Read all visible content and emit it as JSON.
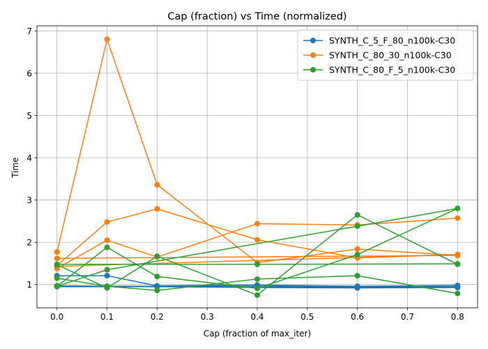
{
  "chart_data": {
    "type": "line",
    "title": "Cap (fraction) vs Time (normalized)",
    "xlabel": "Cap (fraction of max_iter)",
    "ylabel": "Time",
    "xlim": [
      -0.04,
      0.84
    ],
    "ylim": [
      0.45,
      7.12
    ],
    "xticks": [
      0.0,
      0.1,
      0.2,
      0.3,
      0.4,
      0.5,
      0.6,
      0.7,
      0.8
    ],
    "xtick_labels": [
      "0.0",
      "0.1",
      "0.2",
      "0.3",
      "0.4",
      "0.5",
      "0.6",
      "0.7",
      "0.8"
    ],
    "yticks": [
      1,
      2,
      3,
      4,
      5,
      6,
      7
    ],
    "ytick_labels": [
      "1",
      "2",
      "3",
      "4",
      "5",
      "6",
      "7"
    ],
    "grid": true,
    "legend_position": "top-right",
    "legend": [
      {
        "label": "SYNTH_C_5_F_80_n100k-C30",
        "color": "#1f77b4"
      },
      {
        "label": "SYNTH_C_80_30_n100k-C30",
        "color": "#ff7f0e"
      },
      {
        "label": "SYNTH_C_80_F_5_n100k-C30",
        "color": "#2ca02c"
      }
    ],
    "series": [
      {
        "group": 0,
        "color": "#1f77b4",
        "x": [
          0.0,
          0.1,
          0.2,
          0.4,
          0.6,
          0.8
        ],
        "y": [
          1.21,
          1.21,
          0.97,
          0.99,
          0.96,
          0.98
        ]
      },
      {
        "group": 0,
        "color": "#1f77b4",
        "x": [
          0.0,
          0.1,
          0.2,
          0.4,
          0.6,
          0.8
        ],
        "y": [
          0.96,
          0.95,
          0.95,
          0.95,
          0.94,
          0.94
        ]
      },
      {
        "group": 0,
        "color": "#1f77b4",
        "x": [
          0.0,
          0.1,
          0.2,
          0.4,
          0.6,
          0.8
        ],
        "y": [
          0.97,
          0.96,
          0.96,
          0.94,
          0.93,
          0.93
        ]
      },
      {
        "group": 0,
        "color": "#1f77b4",
        "x": [
          0.0,
          0.1,
          0.2,
          0.4,
          0.6,
          0.8
        ],
        "y": [
          0.96,
          0.95,
          0.96,
          0.96,
          0.95,
          0.95
        ]
      },
      {
        "group": 0,
        "color": "#1f77b4",
        "x": [
          0.0,
          0.1,
          0.2,
          0.4,
          0.6,
          0.8
        ],
        "y": [
          0.95,
          0.95,
          0.95,
          0.93,
          0.92,
          0.93
        ]
      },
      {
        "group": 1,
        "color": "#ff7f0e",
        "x": [
          0.0,
          0.1,
          0.2,
          0.4,
          0.6,
          0.8
        ],
        "y": [
          1.77,
          6.8,
          3.36,
          1.52,
          1.84,
          1.69
        ]
      },
      {
        "group": 1,
        "color": "#ff7f0e",
        "x": [
          0.0,
          0.1,
          0.2,
          0.4,
          0.6,
          0.8
        ],
        "y": [
          1.45,
          2.48,
          2.79,
          2.06,
          1.63,
          1.71
        ]
      },
      {
        "group": 1,
        "color": "#ff7f0e",
        "x": [
          0.0,
          0.1,
          0.2,
          0.4,
          0.6,
          0.8
        ],
        "y": [
          1.38,
          2.05,
          1.65,
          2.44,
          2.41,
          2.57
        ]
      },
      {
        "group": 1,
        "color": "#ff7f0e",
        "x": [
          0.0,
          0.8
        ],
        "y": [
          1.62,
          1.69
        ]
      },
      {
        "group": 1,
        "color": "#ff7f0e",
        "x": [
          0.0,
          0.8
        ],
        "y": [
          1.43,
          1.71
        ]
      },
      {
        "group": 2,
        "color": "#2ca02c",
        "x": [
          0.0,
          0.1,
          0.2,
          0.4,
          0.6,
          0.8
        ],
        "y": [
          1.47,
          0.92,
          1.67,
          0.75,
          2.65,
          1.48
        ]
      },
      {
        "group": 2,
        "color": "#2ca02c",
        "x": [
          0.0,
          0.1,
          0.2,
          0.4,
          0.6,
          0.8
        ],
        "y": [
          0.96,
          1.88,
          1.19,
          0.91,
          1.71,
          2.8
        ]
      },
      {
        "group": 2,
        "color": "#2ca02c",
        "x": [
          0.0,
          0.1,
          0.2,
          0.4,
          0.6,
          0.8
        ],
        "y": [
          1.15,
          0.96,
          0.86,
          1.13,
          1.21,
          0.79
        ]
      },
      {
        "group": 2,
        "color": "#2ca02c",
        "x": [
          0.0,
          0.4,
          0.8
        ],
        "y": [
          1.48,
          1.48,
          1.49
        ]
      },
      {
        "group": 2,
        "color": "#2ca02c",
        "x": [
          0.0,
          0.1,
          0.6,
          0.8
        ],
        "y": [
          0.96,
          1.35,
          2.38,
          2.8
        ]
      }
    ]
  }
}
